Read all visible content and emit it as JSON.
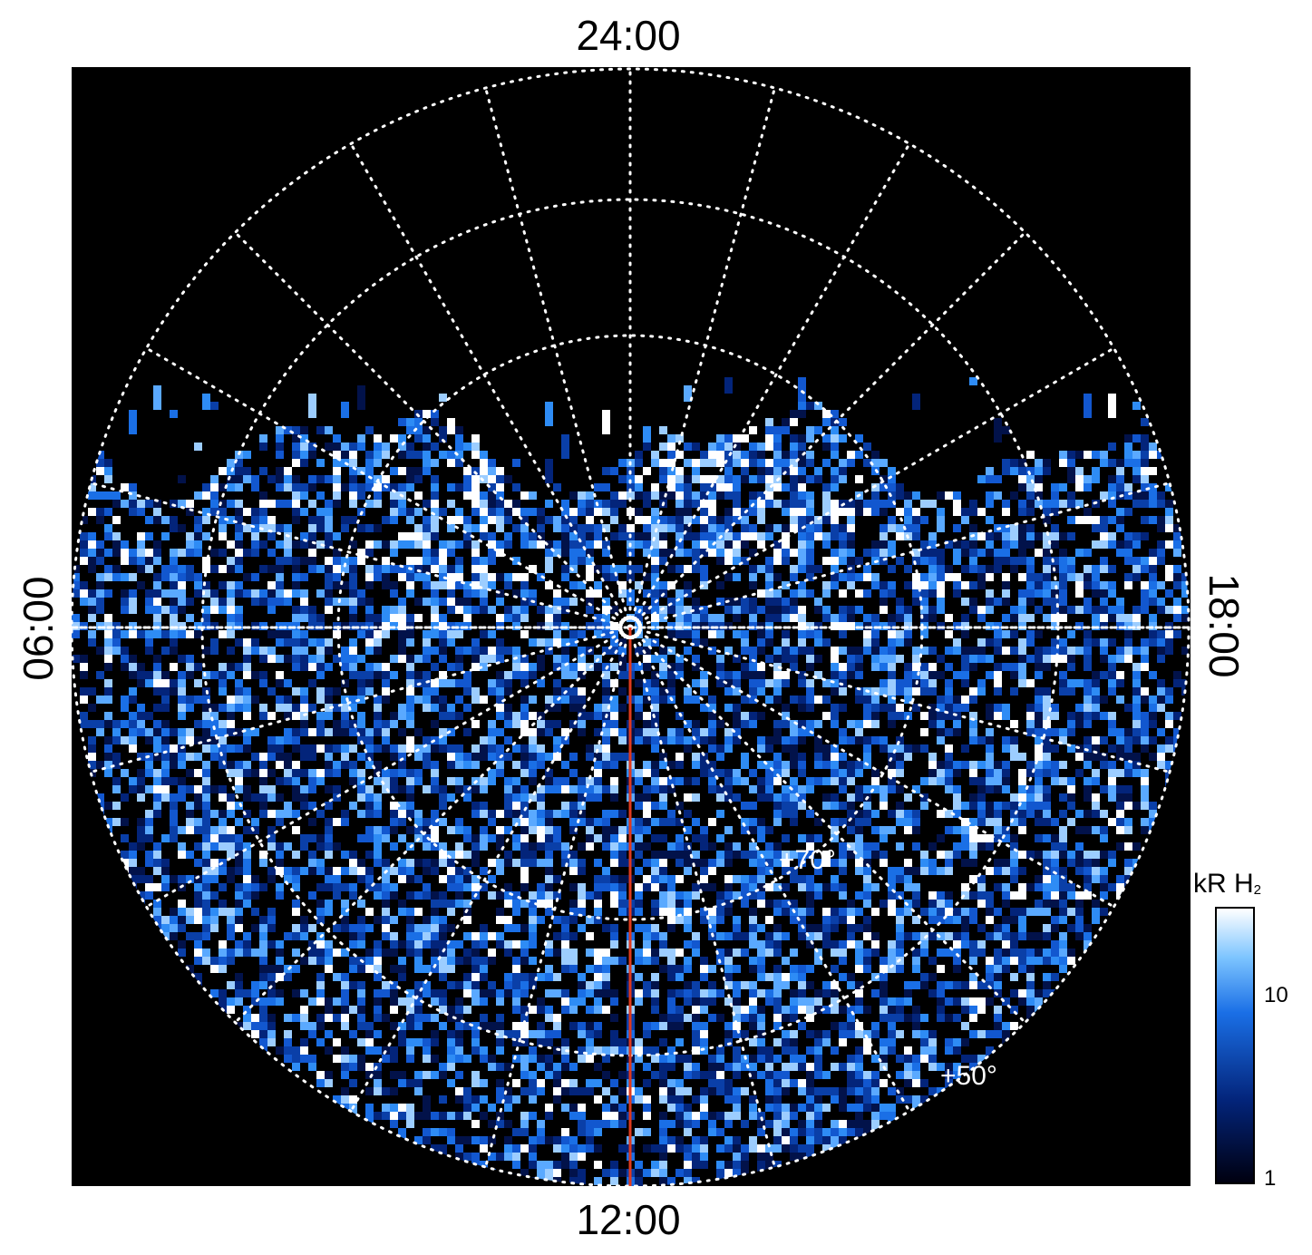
{
  "local_time_labels": {
    "top": "24:00",
    "bottom": "12:00",
    "left": "06:00",
    "right": "18:00"
  },
  "latitude_labels": {
    "inner": "+70°",
    "outer": "+50°"
  },
  "colorbar": {
    "title": "kR H",
    "title_subscript": "2",
    "scale": "log",
    "ticks": [
      "10",
      "1"
    ],
    "range_kR": [
      1,
      30
    ]
  },
  "colors": {
    "background": "#000000",
    "grid": "#ffffff",
    "meridian_line": "#e03a1e",
    "emission_low": "#000010",
    "emission_mid": "#1a6fe6",
    "emission_high": "#ffffff"
  }
}
